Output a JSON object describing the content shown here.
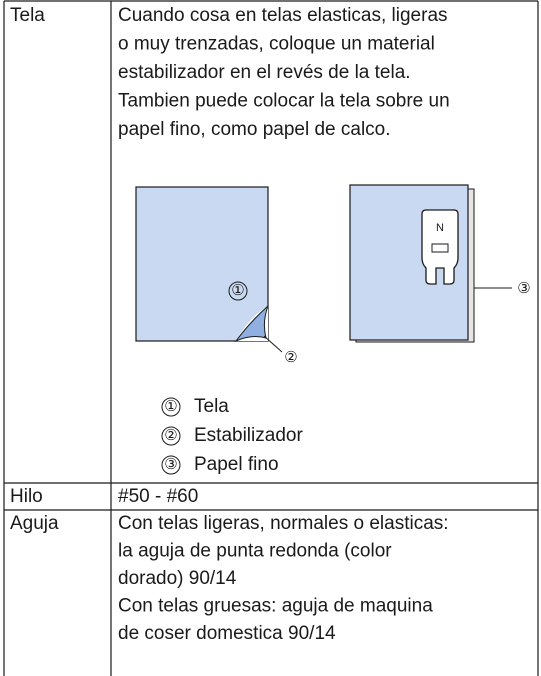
{
  "table": {
    "rows": [
      {
        "label": "Tela",
        "lines": [
          "Cuando cosa en telas elasticas, ligeras",
          "o muy trenzadas, coloque un material",
          "estabilizador en el revés de la tela.",
          "Tambien puede colocar la tela sobre un",
          "papel fino, como papel de calco."
        ],
        "figure": {
          "foot_letter": "N"
        },
        "legend": [
          {
            "marker": "①",
            "label": "Tela"
          },
          {
            "marker": "②",
            "label": "Estabilizador"
          },
          {
            "marker": "③",
            "label": "Papel fino"
          }
        ]
      },
      {
        "label": "Hilo",
        "lines": [
          "#50 - #60"
        ]
      },
      {
        "label": "Aguja",
        "lines": [
          "Con telas ligeras, normales o elasticas:",
          "la aguja de punta redonda (color",
          "dorado) 90/14",
          "Con telas gruesas: aguja de maquina",
          "de coser domestica 90/14"
        ]
      }
    ]
  }
}
